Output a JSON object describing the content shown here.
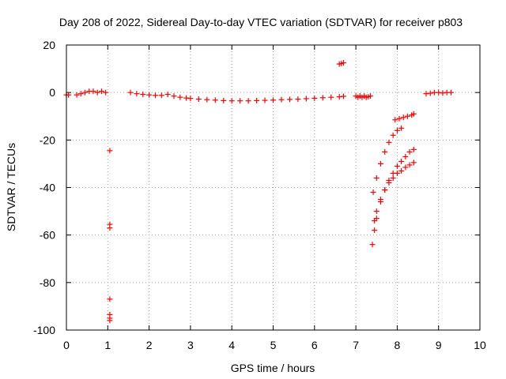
{
  "chart_data": {
    "type": "scatter",
    "title": "Day 208 of 2022, Sidereal Day-to-day VTEC variation (SDTVAR) for receiver p803",
    "xlabel": "GPS time / hours",
    "ylabel": "SDTVAR / TECUs",
    "xlim": [
      0,
      10
    ],
    "ylim": [
      -100,
      20
    ],
    "xticks": [
      0,
      1,
      2,
      3,
      4,
      5,
      6,
      7,
      8,
      9,
      10
    ],
    "yticks": [
      -100,
      -80,
      -60,
      -40,
      -20,
      0,
      20
    ],
    "xtick_labels": [
      "0",
      "1",
      "2",
      "3",
      "4",
      "5",
      "6",
      "7",
      "8",
      "9",
      "10"
    ],
    "ytick_labels": [
      "-100",
      "-80",
      "-60",
      "-40",
      "-20",
      "0",
      "20"
    ],
    "grid": true,
    "marker": "+",
    "color": "#ff0000",
    "series": [
      {
        "name": "segment-1",
        "x": [
          0.0,
          0.05
        ],
        "y": [
          -1,
          -1
        ]
      },
      {
        "name": "segment-2",
        "x": [
          0.25,
          0.35,
          0.45,
          0.55,
          0.65,
          0.75,
          0.85,
          0.95
        ],
        "y": [
          -1,
          -0.5,
          0,
          0.5,
          0.5,
          0,
          0.5,
          0
        ]
      },
      {
        "name": "isolated-1",
        "x": [
          1.05,
          1.05,
          1.05,
          1.05,
          1.05,
          1.05,
          1.05
        ],
        "y": [
          -24.5,
          -55.5,
          -57,
          -87,
          -93.5,
          -95,
          -96
        ]
      },
      {
        "name": "segment-3",
        "x": [
          1.55,
          1.7,
          1.85,
          2.0,
          2.15,
          2.3,
          2.45,
          2.6,
          2.75,
          2.9,
          3.0,
          3.2,
          3.4,
          3.6,
          3.8,
          4.0,
          4.2,
          4.4,
          4.6,
          4.8,
          5.0,
          5.2,
          5.4,
          5.6,
          5.8,
          6.0,
          6.2,
          6.4,
          6.6,
          6.7
        ],
        "y": [
          0,
          -0.5,
          -0.8,
          -1,
          -1.2,
          -1.2,
          -0.8,
          -1.5,
          -2,
          -2.3,
          -2.5,
          -2.8,
          -3,
          -3.2,
          -3.4,
          -3.5,
          -3.5,
          -3.5,
          -3.4,
          -3.3,
          -3.2,
          -3.0,
          -2.9,
          -2.8,
          -2.6,
          -2.4,
          -2.2,
          -2.0,
          -1.8,
          -1.6
        ]
      },
      {
        "name": "segment-4",
        "x": [
          6.6,
          6.65,
          6.7
        ],
        "y": [
          12,
          12.2,
          12.5
        ]
      },
      {
        "name": "segment-5",
        "x": [
          7.0,
          7.05,
          7.1,
          7.15,
          7.2,
          7.25,
          7.3,
          7.35
        ],
        "y": [
          -1.5,
          -2,
          -1.5,
          -2,
          -1.5,
          -2,
          -1.8,
          -1.5
        ]
      },
      {
        "name": "arc-1",
        "x": [
          7.42,
          7.5,
          7.6,
          7.7,
          7.8,
          7.9,
          8.0,
          8.1
        ],
        "y": [
          -42,
          -36,
          -30,
          -25,
          -21,
          -18,
          -16,
          -15
        ]
      },
      {
        "name": "arc-2",
        "x": [
          7.4,
          7.45,
          7.5,
          7.6,
          7.7,
          7.8,
          7.9,
          8.0,
          8.1,
          8.2,
          8.3,
          8.4
        ],
        "y": [
          -64,
          -58,
          -53,
          -46,
          -41,
          -37,
          -34,
          -31,
          -29,
          -27,
          -25,
          -24
        ]
      },
      {
        "name": "arc-3",
        "x": [
          7.45,
          7.5,
          7.6,
          7.7,
          7.8,
          7.9,
          8.0,
          8.1,
          8.2,
          8.3,
          8.4
        ],
        "y": [
          -54,
          -50,
          -45,
          -41,
          -38,
          -36,
          -34,
          -33,
          -31.5,
          -30.5,
          -29.5
        ]
      },
      {
        "name": "segment-6",
        "x": [
          7.95,
          8.05,
          8.15,
          8.25,
          8.35,
          8.4
        ],
        "y": [
          -11.5,
          -11,
          -10.5,
          -10,
          -9.5,
          -9
        ]
      },
      {
        "name": "segment-7",
        "x": [
          8.7,
          8.8,
          8.9,
          9.0,
          9.1,
          9.2,
          9.3
        ],
        "y": [
          -0.5,
          -0.3,
          0,
          0,
          -0.2,
          0,
          0
        ]
      }
    ]
  }
}
